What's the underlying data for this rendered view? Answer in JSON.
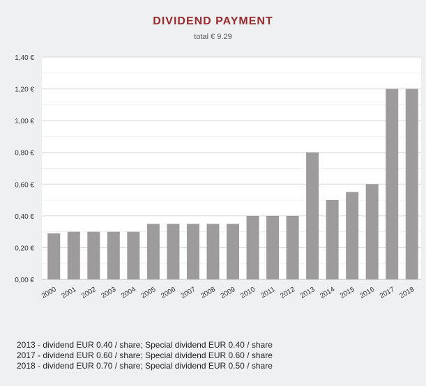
{
  "chart_data": {
    "type": "bar",
    "title": "DIVIDEND PAYMENT",
    "subtitle": "total € 9.29",
    "categories": [
      "2000",
      "2001",
      "2002",
      "2003",
      "2004",
      "2005",
      "2006",
      "2007",
      "2008",
      "2009",
      "2010",
      "2011",
      "2012",
      "2013",
      "2014",
      "2015",
      "2016",
      "2017",
      "2018"
    ],
    "values": [
      0.29,
      0.3,
      0.3,
      0.3,
      0.3,
      0.35,
      0.35,
      0.35,
      0.35,
      0.35,
      0.4,
      0.4,
      0.4,
      0.8,
      0.5,
      0.55,
      0.6,
      1.2,
      1.2
    ],
    "ylim": [
      0,
      1.4
    ],
    "yticks": [
      "0,00 €",
      "0,20 €",
      "0,40 €",
      "0,60 €",
      "0,80 €",
      "1,00 €",
      "1,20 €",
      "1,40 €"
    ],
    "ytick_values": [
      0,
      0.2,
      0.4,
      0.6,
      0.8,
      1.0,
      1.2,
      1.4
    ],
    "minor_grid_step": 0.1,
    "grid": true,
    "colors": {
      "bar": "#9d9b9b",
      "title": "#9b2a2f",
      "plot_background": "#ffffff",
      "major_grid": "#d9d9d9",
      "minor_grid": "#f0f0f0",
      "axis": "#bfbfbf"
    }
  },
  "footnotes": [
    "2013 - dividend EUR 0.40 / share; Special dividend EUR 0.40 / share",
    "2017 - dividend EUR 0.60 / share; Special dividend EUR 0.60 / share",
    "2018 - dividend EUR 0.70 / share; Special dividend EUR 0.50 / share"
  ]
}
